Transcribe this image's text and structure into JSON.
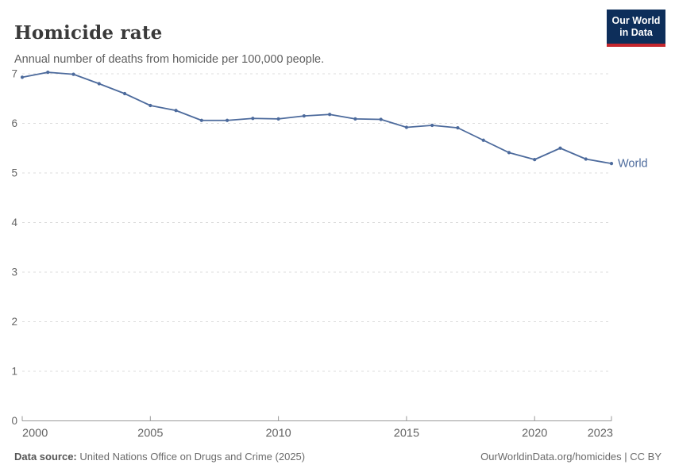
{
  "header": {
    "title": "Homicide rate",
    "subtitle": "Annual number of deaths from homicide per 100,000 people.",
    "logo": {
      "line1": "Our World",
      "line2": "in Data"
    }
  },
  "chart_data": {
    "type": "line",
    "title": "Homicide rate",
    "subtitle": "Annual number of deaths from homicide per 100,000 people.",
    "x": [
      2000,
      2001,
      2002,
      2003,
      2004,
      2005,
      2006,
      2007,
      2008,
      2009,
      2010,
      2011,
      2012,
      2013,
      2014,
      2015,
      2016,
      2017,
      2018,
      2019,
      2020,
      2021,
      2022,
      2023
    ],
    "series": [
      {
        "name": "World",
        "color": "#4C6A9C",
        "values": [
          6.93,
          7.03,
          6.99,
          6.8,
          6.6,
          6.36,
          6.26,
          6.06,
          6.06,
          6.1,
          6.09,
          6.15,
          6.18,
          6.09,
          6.08,
          5.92,
          5.96,
          5.91,
          5.66,
          5.41,
          5.27,
          5.5,
          5.28,
          5.19
        ]
      }
    ],
    "end_label": "World",
    "xlabel": "",
    "ylabel": "",
    "xlim": [
      2000,
      2023
    ],
    "ylim": [
      0,
      7
    ],
    "xticks": [
      2000,
      2005,
      2010,
      2015,
      2020,
      2023
    ],
    "yticks": [
      0,
      1,
      2,
      3,
      4,
      5,
      6,
      7
    ],
    "grid": "horizontal-dashed",
    "legend_position": "end-of-line"
  },
  "footer": {
    "source_label": "Data source:",
    "source_text": "United Nations Office on Drugs and Crime (2025)",
    "link_text": "OurWorldinData.org/homicides | CC BY"
  },
  "colors": {
    "line": "#4C6A9C",
    "grid": "#dcdcdc",
    "axis": "#999999",
    "tick_label": "#666666",
    "title": "#3a3a3a",
    "subtitle": "#5e5e5e",
    "logo_bg": "#0d2e5a",
    "logo_accent": "#c5262d",
    "background": "#ffffff"
  }
}
